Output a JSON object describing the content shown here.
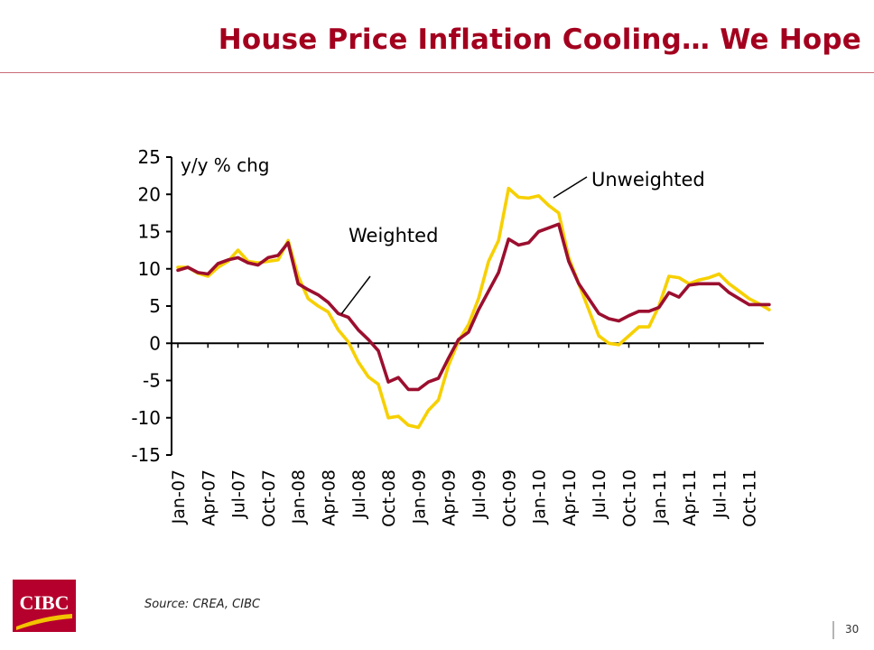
{
  "header": {
    "title": "House Price Inflation Cooling… We Hope"
  },
  "footer": {
    "source": "Source: CREA, CIBC",
    "page_number": "30",
    "logo_text": "CIBC"
  },
  "colors": {
    "title": "#a3001e",
    "weighted": "#9b0f2f",
    "unweighted": "#f7d000",
    "axis": "#000000",
    "logo_red": "#b5002d",
    "logo_gold": "#f2c300"
  },
  "chart_data": {
    "type": "line",
    "ylabel": "y/y % chg",
    "ylim": [
      -15,
      25
    ],
    "yticks": [
      25,
      20,
      15,
      10,
      5,
      0,
      -5,
      -10,
      -15
    ],
    "grid": false,
    "legend": "inline annotations",
    "categories": [
      "Jan-07",
      "Apr-07",
      "Jul-07",
      "Oct-07",
      "Jan-08",
      "Apr-08",
      "Jul-08",
      "Oct-08",
      "Jan-09",
      "Apr-09",
      "Jul-09",
      "Oct-09",
      "Jan-10",
      "Apr-10",
      "Jul-10",
      "Oct-10",
      "Jan-11",
      "Apr-11",
      "Jul-11",
      "Oct-11"
    ],
    "x": [
      "2007-01",
      "2007-02",
      "2007-03",
      "2007-04",
      "2007-05",
      "2007-06",
      "2007-07",
      "2007-08",
      "2007-09",
      "2007-10",
      "2007-11",
      "2007-12",
      "2008-01",
      "2008-02",
      "2008-03",
      "2008-04",
      "2008-05",
      "2008-06",
      "2008-07",
      "2008-08",
      "2008-09",
      "2008-10",
      "2008-11",
      "2008-12",
      "2009-01",
      "2009-02",
      "2009-03",
      "2009-04",
      "2009-05",
      "2009-06",
      "2009-07",
      "2009-08",
      "2009-09",
      "2009-10",
      "2009-11",
      "2009-12",
      "2010-01",
      "2010-02",
      "2010-03",
      "2010-04",
      "2010-05",
      "2010-06",
      "2010-07",
      "2010-08",
      "2010-09",
      "2010-10",
      "2010-11",
      "2010-12",
      "2011-01",
      "2011-02",
      "2011-03",
      "2011-04",
      "2011-05",
      "2011-06",
      "2011-07",
      "2011-08",
      "2011-09",
      "2011-10",
      "2011-11",
      "2011-12"
    ],
    "series": [
      {
        "name": "Weighted",
        "values": [
          9.8,
          10.2,
          9.5,
          9.3,
          10.7,
          11.2,
          11.5,
          10.8,
          10.5,
          11.5,
          11.8,
          13.5,
          8.0,
          7.2,
          6.5,
          5.5,
          4.0,
          3.5,
          1.8,
          0.5,
          -1.0,
          -5.2,
          -4.6,
          -6.2,
          -6.2,
          -5.2,
          -4.7,
          -2.0,
          0.5,
          1.5,
          4.5,
          7.0,
          9.5,
          14.0,
          13.2,
          13.5,
          15.0,
          15.5,
          16.0,
          11.0,
          8.0,
          6.0,
          4.0,
          3.3,
          3.0,
          3.7,
          4.3,
          4.3,
          4.8,
          6.8,
          6.2,
          7.8,
          8.0,
          8.0,
          8.0,
          6.8,
          6.0,
          5.2,
          5.2,
          5.2
        ]
      },
      {
        "name": "Unweighted",
        "values": [
          10.2,
          10.2,
          9.4,
          9.0,
          10.2,
          11.0,
          12.5,
          11.0,
          10.8,
          11.0,
          11.2,
          13.8,
          9.0,
          6.0,
          5.0,
          4.2,
          1.8,
          0.2,
          -2.5,
          -4.5,
          -5.5,
          -10.0,
          -9.8,
          -11.0,
          -11.3,
          -9.0,
          -7.6,
          -3.0,
          0.3,
          2.5,
          6.0,
          11.0,
          13.8,
          20.8,
          19.6,
          19.5,
          19.8,
          18.5,
          17.5,
          11.5,
          8.0,
          4.5,
          1.0,
          0.0,
          -0.2,
          1.0,
          2.2,
          2.2,
          5.0,
          9.0,
          8.8,
          8.0,
          8.5,
          8.8,
          9.3,
          8.0,
          7.0,
          6.0,
          5.3,
          4.5
        ]
      }
    ],
    "annotations": [
      "Weighted",
      "Unweighted"
    ]
  }
}
